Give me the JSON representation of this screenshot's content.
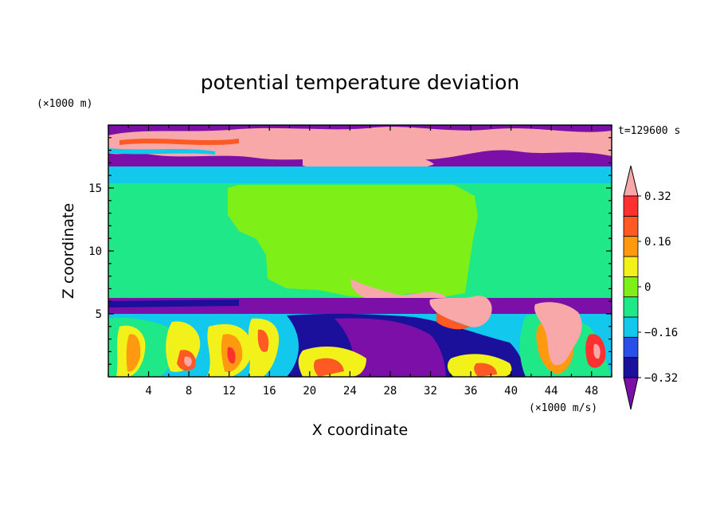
{
  "chart_data": {
    "type": "heatmap",
    "title": "potential temperature deviation",
    "xlabel": "X coordinate",
    "ylabel": "Z coordinate",
    "x_units": "(×1000 m/s)",
    "y_units": "(×1000 m)",
    "time_label": "t=129600 s",
    "xlim": [
      0,
      50
    ],
    "ylim": [
      0,
      20
    ],
    "x_ticks": [
      4,
      8,
      12,
      16,
      20,
      24,
      28,
      32,
      36,
      40,
      44,
      48
    ],
    "y_ticks": [
      5,
      10,
      15
    ],
    "colorbar": {
      "tick_labels": [
        "0.32",
        "0.16",
        "0",
        "−0.16",
        "−0.32"
      ],
      "levels": [
        -0.4,
        -0.32,
        -0.24,
        -0.16,
        -0.08,
        0,
        0.08,
        0.16,
        0.24,
        0.32,
        0.4
      ],
      "colors": [
        "#7b0fa8",
        "#1a109c",
        "#2a4fe8",
        "#12c8ec",
        "#1ee888",
        "#7ef018",
        "#f2f21a",
        "#ff9a10",
        "#ff5a24",
        "#ff3030",
        "#f8a8a8"
      ]
    },
    "regions": [
      {
        "name": "stratosphere-band",
        "x": [
          0,
          50
        ],
        "z": [
          16.5,
          20
        ],
        "color": "#7b0fa8"
      },
      {
        "name": "upper-pink-streaks",
        "x": [
          0,
          50
        ],
        "z": [
          17,
          19.5
        ],
        "color": "#f8a8a8"
      },
      {
        "name": "upper-cyan-layer",
        "x": [
          0,
          50
        ],
        "z": [
          15.2,
          16.5
        ],
        "color": "#12c8ec"
      },
      {
        "name": "mid-green-layer",
        "x": [
          0,
          50
        ],
        "z": [
          6,
          15.2
        ],
        "color": "#1ee888"
      },
      {
        "name": "anvil-lime-plume",
        "x": [
          12,
          36
        ],
        "z": [
          6.5,
          15.2
        ],
        "color": "#7ef018"
      },
      {
        "name": "boundary-purple-band",
        "x": [
          0,
          50
        ],
        "z": [
          5,
          6.2
        ],
        "color": "#7b0fa8"
      },
      {
        "name": "lower-turbulent-layer",
        "x": [
          0,
          50
        ],
        "z": [
          0,
          5
        ],
        "color": "#12c8ec"
      },
      {
        "name": "cold-pool-blue",
        "x": [
          20,
          42
        ],
        "z": [
          0,
          5
        ],
        "color": "#1a109c"
      },
      {
        "name": "right-pink-plume",
        "x": [
          43,
          50
        ],
        "z": [
          1.5,
          6
        ],
        "color": "#f8a8a8"
      }
    ]
  }
}
